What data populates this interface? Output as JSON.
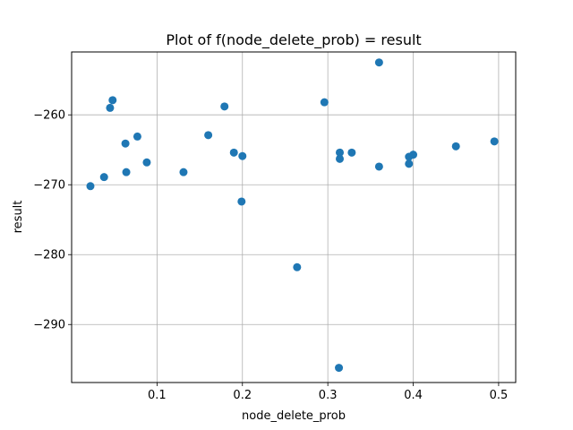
{
  "chart_data": {
    "type": "scatter",
    "title": "Plot of f(node_delete_prob) = result",
    "xlabel": "node_delete_prob",
    "ylabel": "result",
    "xlim": [
      0.0,
      0.52
    ],
    "ylim": [
      -298.3,
      -251.0
    ],
    "xticks": [
      0.1,
      0.2,
      0.3,
      0.4,
      0.5
    ],
    "xtick_labels": [
      "0.1",
      "0.2",
      "0.3",
      "0.4",
      "0.5"
    ],
    "yticks": [
      -290,
      -280,
      -270,
      -260
    ],
    "ytick_labels": [
      "−290",
      "−280",
      "−270",
      "−260"
    ],
    "grid": true,
    "marker_color": "#1f77b4",
    "points": [
      {
        "x": 0.022,
        "y": -270.2
      },
      {
        "x": 0.038,
        "y": -268.9
      },
      {
        "x": 0.045,
        "y": -259.0
      },
      {
        "x": 0.048,
        "y": -257.9
      },
      {
        "x": 0.063,
        "y": -264.1
      },
      {
        "x": 0.064,
        "y": -268.2
      },
      {
        "x": 0.077,
        "y": -263.1
      },
      {
        "x": 0.088,
        "y": -266.8
      },
      {
        "x": 0.131,
        "y": -268.2
      },
      {
        "x": 0.16,
        "y": -262.9
      },
      {
        "x": 0.179,
        "y": -258.8
      },
      {
        "x": 0.19,
        "y": -265.4
      },
      {
        "x": 0.199,
        "y": -272.4
      },
      {
        "x": 0.2,
        "y": -265.9
      },
      {
        "x": 0.264,
        "y": -281.8
      },
      {
        "x": 0.296,
        "y": -258.2
      },
      {
        "x": 0.313,
        "y": -296.2
      },
      {
        "x": 0.314,
        "y": -265.4
      },
      {
        "x": 0.314,
        "y": -266.3
      },
      {
        "x": 0.328,
        "y": -265.4
      },
      {
        "x": 0.36,
        "y": -267.4
      },
      {
        "x": 0.36,
        "y": -252.5
      },
      {
        "x": 0.395,
        "y": -267.0
      },
      {
        "x": 0.395,
        "y": -266.0
      },
      {
        "x": 0.4,
        "y": -265.7
      },
      {
        "x": 0.45,
        "y": -264.5
      },
      {
        "x": 0.495,
        "y": -263.8
      }
    ]
  }
}
